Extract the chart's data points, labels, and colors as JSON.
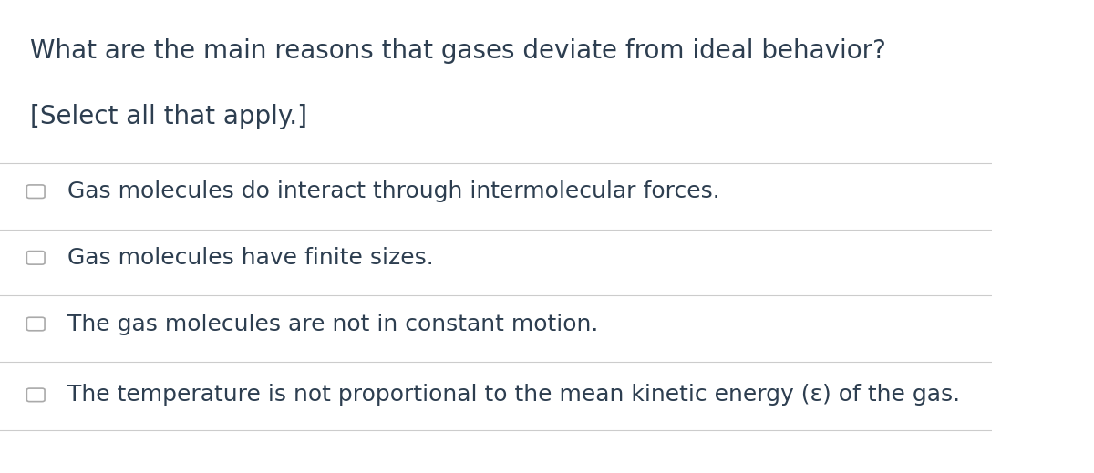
{
  "background_color": "#ffffff",
  "title_line1": "What are the main reasons that gases deviate from ideal behavior?",
  "title_line2": "[Select all that apply.]",
  "title_color": "#2d3e50",
  "title_fontsize": 20,
  "options": [
    "Gas molecules do interact through intermolecular forces.",
    "Gas molecules have finite sizes.",
    "The gas molecules are not in constant motion.",
    "The temperature is not proportional to the mean kinetic energy (ε) of the gas."
  ],
  "option_fontsize": 18,
  "option_color": "#2d3e50",
  "separator_color": "#cccccc",
  "checkbox_color": "#aaaaaa",
  "checkbox_size": 0.022
}
